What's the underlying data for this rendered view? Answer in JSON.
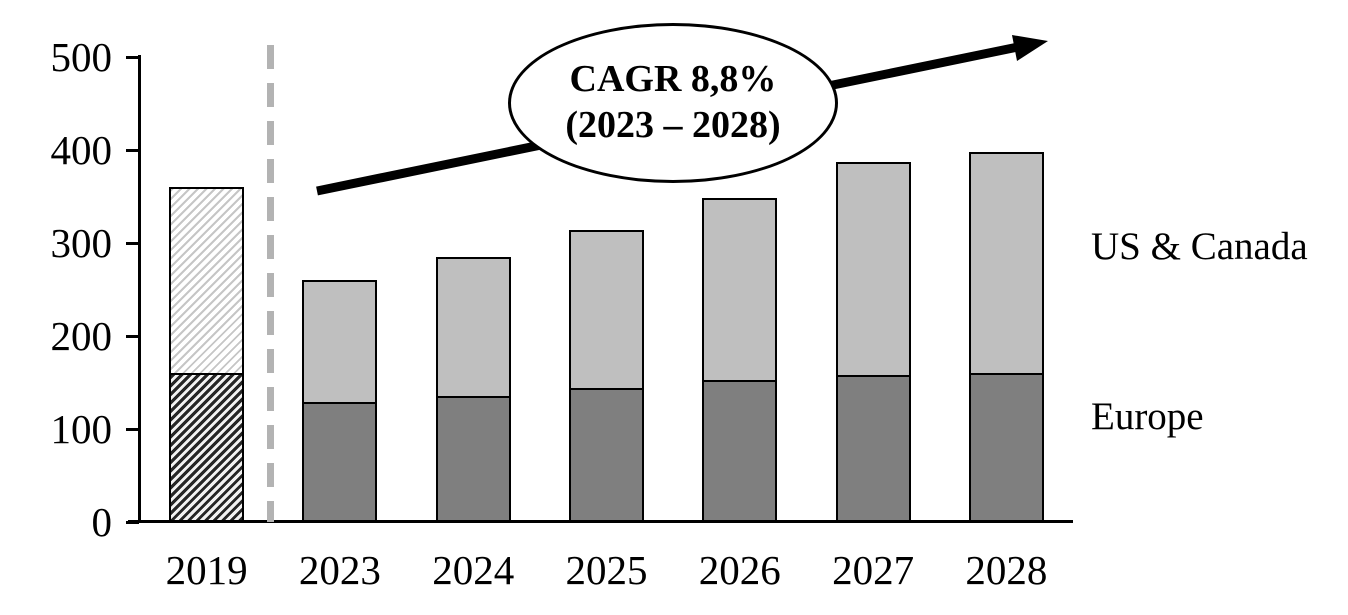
{
  "chart_data": {
    "type": "bar",
    "variant": "stacked",
    "categories": [
      "2019",
      "2023",
      "2024",
      "2025",
      "2026",
      "2027",
      "2028"
    ],
    "series": [
      {
        "name": "Europe",
        "values": [
          160,
          128,
          135,
          144,
          152,
          157,
          160
        ]
      },
      {
        "name": "US & Canada",
        "values": [
          200,
          132,
          150,
          170,
          196,
          230,
          238
        ]
      }
    ],
    "totals": [
      360,
      260,
      285,
      314,
      348,
      387,
      398
    ],
    "ylim": [
      0,
      500
    ],
    "y_ticks": [
      0,
      100,
      200,
      300,
      400,
      500
    ],
    "hatched_category": "2019",
    "separator_after_category": "2019",
    "grid": "off",
    "legend_position": "right-of-plot",
    "annotation": {
      "line1": "CAGR 8,8%",
      "line2": "(2023 – 2028)"
    }
  },
  "labels": {
    "us_canada": "US & Canada",
    "europe": "Europe"
  },
  "colors": {
    "europe_fill": "#7F7F7F",
    "us_canada_fill": "#BFBFBF",
    "bar_border": "#000000",
    "dashed_separator": "#B3B3B3",
    "hatch_dark_line": "#262626",
    "hatch_light_line": "#C6C6C6",
    "arrow": "#000000"
  }
}
